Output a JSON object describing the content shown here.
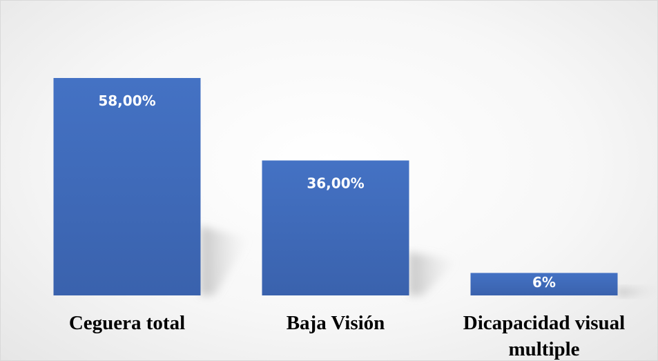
{
  "chart_data": {
    "type": "bar",
    "categories": [
      "Ceguera total",
      "Baja Visión",
      "Dicapacidad visual multiple"
    ],
    "values": [
      58,
      36,
      6
    ],
    "data_labels": [
      "58,00%",
      "36,00%",
      "6%"
    ],
    "ylim": [
      0,
      58
    ],
    "grid": false,
    "legend": "none",
    "colors": {
      "bar_top": "#4472c4",
      "bar_bottom": "#3a62ad",
      "label": "#ffffff"
    }
  }
}
